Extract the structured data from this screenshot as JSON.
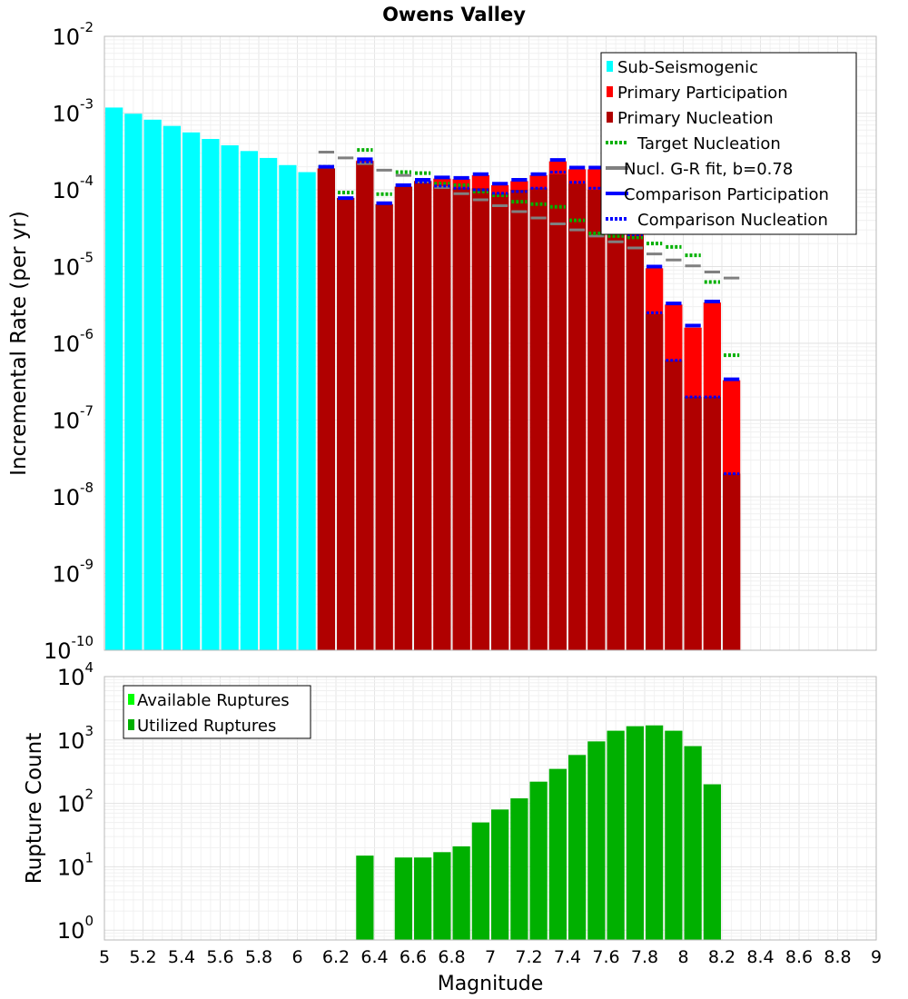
{
  "title": "Owens Valley",
  "chart_data": [
    {
      "type": "bar",
      "yscale": "log",
      "title": "Owens Valley",
      "xlabel": "",
      "ylabel": "Incremental Rate (per yr)",
      "xlim": [
        5,
        9
      ],
      "ylim": [
        1e-10,
        0.01
      ],
      "y_ticks": [
        {
          "exp": -10,
          "base": "10",
          "power": "-10"
        },
        {
          "exp": -9,
          "base": "10",
          "power": "-9"
        },
        {
          "exp": -8,
          "base": "10",
          "power": "-8"
        },
        {
          "exp": -7,
          "base": "10",
          "power": "-7"
        },
        {
          "exp": -6,
          "base": "10",
          "power": "-6"
        },
        {
          "exp": -5,
          "base": "10",
          "power": "-5"
        },
        {
          "exp": -4,
          "base": "10",
          "power": "-4"
        },
        {
          "exp": -3,
          "base": "10",
          "power": "-3"
        },
        {
          "exp": -2,
          "base": "10",
          "power": "-2"
        }
      ],
      "legend_position": "top-right",
      "legend": [
        {
          "label": "Sub-Seismogenic",
          "color": "#00ffff",
          "style": "bar"
        },
        {
          "label": "Primary Participation",
          "color": "#ff0000",
          "style": "bar"
        },
        {
          "label": "Primary Nucleation",
          "color": "#b00000",
          "style": "bar"
        },
        {
          "label": "Target Nucleation",
          "color": "#00b000",
          "style": "dotted"
        },
        {
          "label": "Nucl. G-R fit, b=0.78",
          "color": "#808080",
          "style": "solid"
        },
        {
          "label": "Comparison Participation",
          "color": "#0000ff",
          "style": "solid"
        },
        {
          "label": "Comparison Nucleation",
          "color": "#0000ff",
          "style": "dotted"
        }
      ],
      "series": [
        {
          "name": "Sub-Seismogenic",
          "color": "#00ffff",
          "x": [
            5.05,
            5.15,
            5.25,
            5.35,
            5.45,
            5.55,
            5.65,
            5.75,
            5.85,
            5.95,
            6.05
          ],
          "values": [
            0.00118,
            0.00098,
            0.00082,
            0.00068,
            0.00056,
            0.00046,
            0.00038,
            0.00032,
            0.00026,
            0.00021,
            0.00017
          ]
        },
        {
          "name": "Primary Participation",
          "color": "#ff0000",
          "x": [
            6.15,
            6.25,
            6.35,
            6.45,
            6.55,
            6.65,
            6.75,
            6.85,
            6.95,
            7.05,
            7.15,
            7.25,
            7.35,
            7.45,
            7.55,
            7.65,
            7.75,
            7.85,
            7.95,
            8.05,
            8.15,
            8.25
          ],
          "values": [
            0.00019,
            7.8e-05,
            0.00024,
            6.5e-05,
            0.00011,
            0.00013,
            0.00014,
            0.000138,
            0.000155,
            0.000115,
            0.00013,
            0.000155,
            0.000235,
            0.000185,
            0.000185,
            0.00011,
            5.5e-05,
            9.5e-06,
            3.2e-06,
            1.6e-06,
            3.4e-06,
            3.3e-07
          ]
        },
        {
          "name": "Primary Nucleation",
          "color": "#b00000",
          "x": [
            6.15,
            6.25,
            6.35,
            6.45,
            6.55,
            6.65,
            6.75,
            6.85,
            6.95,
            7.05,
            7.15,
            7.25,
            7.35,
            7.45,
            7.55,
            7.65,
            7.75,
            7.85,
            7.95,
            8.05,
            8.15,
            8.25
          ],
          "values": [
            0.00019,
            7.8e-05,
            0.00023,
            6.5e-05,
            0.00011,
            0.00013,
            0.00011,
            0.000105,
            0.000105,
            9e-05,
            0.0001,
            0.000105,
            0.00016,
            0.00012,
            0.0001,
            4.5e-05,
            2.5e-05,
            2.4e-06,
            6e-07,
            2e-07,
            2e-07,
            2e-08
          ]
        },
        {
          "name": "Target Nucleation",
          "color": "#00b000",
          "x": [
            6.15,
            6.25,
            6.35,
            6.45,
            6.55,
            6.65,
            6.75,
            6.85,
            6.95,
            7.05,
            7.15,
            7.25,
            7.35,
            7.45,
            7.55,
            7.65,
            7.75,
            7.85,
            7.95,
            8.05,
            8.15,
            8.25
          ],
          "values": [
            0.0002,
            9.2e-05,
            0.00033,
            8.8e-05,
            0.00017,
            0.000165,
            0.00012,
            0.000115,
            9.5e-05,
            8.5e-05,
            7e-05,
            6.5e-05,
            6e-05,
            4e-05,
            2.7e-05,
            2.5e-05,
            2.4e-05,
            2e-05,
            1.8e-05,
            1.4e-05,
            6.3e-06,
            7e-07
          ]
        },
        {
          "name": "Nucl. G-R fit, b=0.78",
          "color": "#808080",
          "x": [
            6.15,
            6.25,
            6.35,
            6.45,
            6.55,
            6.65,
            6.75,
            6.85,
            6.95,
            7.05,
            7.15,
            7.25,
            7.35,
            7.45,
            7.55,
            7.65,
            7.75,
            7.85,
            7.95,
            8.05,
            8.15,
            8.25
          ],
          "values": [
            0.00031,
            0.00026,
            0.00022,
            0.00018,
            0.000154,
            0.000128,
            0.000107,
            8.9e-05,
            7.4e-05,
            6.2e-05,
            5.2e-05,
            4.3e-05,
            3.6e-05,
            3e-05,
            2.5e-05,
            2.1e-05,
            1.75e-05,
            1.46e-05,
            1.22e-05,
            1.02e-05,
            8.5e-06,
            7.1e-06
          ]
        },
        {
          "name": "Comparison Participation",
          "color": "#0000ff",
          "x": [
            6.15,
            6.25,
            6.35,
            6.45,
            6.55,
            6.65,
            6.75,
            6.85,
            6.95,
            7.05,
            7.15,
            7.25,
            7.35,
            7.45,
            7.55,
            7.65,
            7.75,
            7.85,
            7.95,
            8.05,
            8.15,
            8.25
          ],
          "values": [
            0.0002,
            7.8e-05,
            0.00025,
            6.7e-05,
            0.000115,
            0.000135,
            0.000145,
            0.000143,
            0.00016,
            0.00012,
            0.000135,
            0.00016,
            0.000245,
            0.000195,
            0.000195,
            0.000115,
            5.7e-05,
            1e-05,
            3.3e-06,
            1.7e-06,
            3.5e-06,
            3.4e-07
          ]
        },
        {
          "name": "Comparison Nucleation",
          "color": "#0000ff",
          "x": [
            6.15,
            6.25,
            6.35,
            6.45,
            6.55,
            6.65,
            6.75,
            6.85,
            6.95,
            7.05,
            7.15,
            7.25,
            7.35,
            7.45,
            7.55,
            7.65,
            7.75,
            7.85,
            7.95,
            8.05,
            8.15,
            8.25
          ],
          "values": [
            0.0002,
            7.8e-05,
            0.00023,
            6.7e-05,
            0.000115,
            0.000125,
            0.000112,
            0.000105,
            0.0001,
            9e-05,
            9.5e-05,
            0.000105,
            0.00017,
            0.000125,
            0.000105,
            4.8e-05,
            2.6e-05,
            2.5e-06,
            6e-07,
            2e-07,
            2e-07,
            2e-08
          ]
        }
      ]
    },
    {
      "type": "bar",
      "yscale": "log",
      "title": "",
      "xlabel": "Magnitude",
      "ylabel": "Rupture Count",
      "xlim": [
        5,
        9
      ],
      "ylim": [
        0.7,
        10000
      ],
      "y_ticks": [
        {
          "exp": 0,
          "base": "10",
          "power": "0"
        },
        {
          "exp": 1,
          "base": "10",
          "power": "1"
        },
        {
          "exp": 2,
          "base": "10",
          "power": "2"
        },
        {
          "exp": 3,
          "base": "10",
          "power": "3"
        },
        {
          "exp": 4,
          "base": "10",
          "power": "4"
        }
      ],
      "x_ticks": [
        "5",
        "5.2",
        "5.4",
        "5.6",
        "5.8",
        "6",
        "6.2",
        "6.4",
        "6.6",
        "6.8",
        "7",
        "7.2",
        "7.4",
        "7.6",
        "7.8",
        "8",
        "8.2",
        "8.4",
        "8.6",
        "8.8",
        "9"
      ],
      "legend_position": "top-left",
      "legend": [
        {
          "label": "Available Ruptures",
          "color": "#00ff00",
          "style": "bar"
        },
        {
          "label": "Utilized Ruptures",
          "color": "#00b000",
          "style": "bar"
        }
      ],
      "series": [
        {
          "name": "Utilized Ruptures",
          "color": "#00b000",
          "x": [
            6.35,
            6.55,
            6.65,
            6.75,
            6.85,
            6.95,
            7.05,
            7.15,
            7.25,
            7.35,
            7.45,
            7.55,
            7.65,
            7.75,
            7.85,
            7.95,
            8.05,
            8.15
          ],
          "values": [
            15,
            14,
            14,
            17,
            21,
            50,
            80,
            120,
            220,
            350,
            580,
            950,
            1400,
            1650,
            1700,
            1400,
            800,
            200
          ]
        }
      ]
    }
  ]
}
